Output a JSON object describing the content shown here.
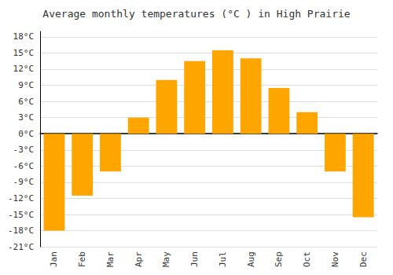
{
  "chart_data": {
    "type": "bar",
    "title": "Average monthly temperatures (°C ) in High Prairie",
    "categories": [
      "Jan",
      "Feb",
      "Mar",
      "Apr",
      "May",
      "Jun",
      "Jul",
      "Aug",
      "Sep",
      "Oct",
      "Nov",
      "Dec"
    ],
    "values": [
      -18,
      -11.5,
      -7,
      3,
      10,
      13.5,
      15.5,
      14,
      8.5,
      4,
      -7,
      -15.5
    ],
    "color": "#FFA500",
    "ylim": [
      -21,
      19
    ],
    "yticks": [
      {
        "value": -21,
        "label": "-21°C"
      },
      {
        "value": -18,
        "label": "-18°C"
      },
      {
        "value": -15,
        "label": "-15°C"
      },
      {
        "value": -12,
        "label": "-12°C"
      },
      {
        "value": -9,
        "label": "-9°C"
      },
      {
        "value": -6,
        "label": "-6°C"
      },
      {
        "value": -3,
        "label": "-3°C"
      },
      {
        "value": 0,
        "label": "0°C"
      },
      {
        "value": 3,
        "label": "3°C"
      },
      {
        "value": 6,
        "label": "6°C"
      },
      {
        "value": 9,
        "label": "9°C"
      },
      {
        "value": 12,
        "label": "12°C"
      },
      {
        "value": 15,
        "label": "15°C"
      },
      {
        "value": 18,
        "label": "18°C"
      }
    ],
    "grid": true
  }
}
